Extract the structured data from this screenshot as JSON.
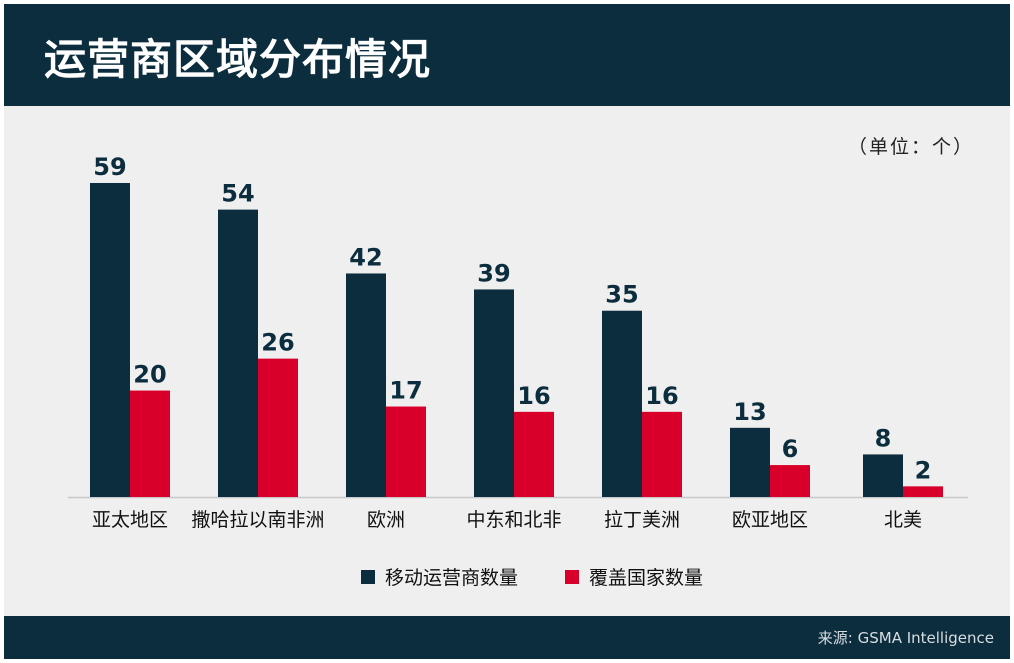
{
  "title": "运营商区域分布情况",
  "unit_note": "（单位：个）",
  "source": "来源: GSMA Intelligence",
  "colors": {
    "header_bg": "#0b2d3d",
    "series_operators": "#0b2d3d",
    "series_countries": "#d8002a",
    "plot_bg": "#efefef"
  },
  "chart_data": {
    "type": "bar",
    "categories": [
      "亚太地区",
      "撒哈拉以南非洲",
      "欧洲",
      "中东和北非",
      "拉丁美洲",
      "欧亚地区",
      "北美"
    ],
    "series": [
      {
        "name": "移动运营商数量",
        "values": [
          59,
          54,
          42,
          39,
          35,
          13,
          8
        ]
      },
      {
        "name": "覆盖国家数量",
        "values": [
          20,
          26,
          17,
          16,
          16,
          6,
          2
        ]
      }
    ],
    "title": "运营商区域分布情况",
    "xlabel": "",
    "ylabel": "",
    "ylim": [
      0,
      59
    ],
    "grid": false,
    "legend": "bottom",
    "data_labels": true
  }
}
